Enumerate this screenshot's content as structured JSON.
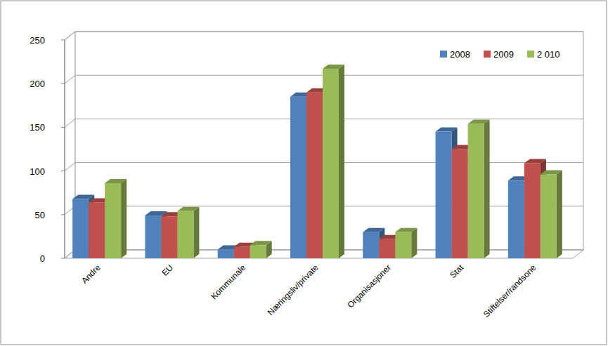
{
  "chart_data": {
    "type": "bar",
    "categories": [
      "Andre",
      "EU",
      "Kommunale",
      "Næringsliv/private",
      "Organisasjoner",
      "Stat",
      "Stiftelser/randsone"
    ],
    "series": [
      {
        "name": "2008",
        "color": "#4f81bd",
        "values": [
          68,
          49,
          10,
          185,
          30,
          145,
          89
        ]
      },
      {
        "name": "2009",
        "color": "#c0504d",
        "values": [
          64,
          48,
          13,
          190,
          22,
          125,
          109
        ]
      },
      {
        "name": "2 010",
        "color": "#9bbb59",
        "values": [
          86,
          54,
          15,
          217,
          30,
          154,
          96
        ]
      }
    ],
    "ylim": [
      0,
      250
    ],
    "yticks": [
      0,
      50,
      100,
      150,
      200,
      250
    ],
    "grid": true,
    "legend": "top-right"
  }
}
